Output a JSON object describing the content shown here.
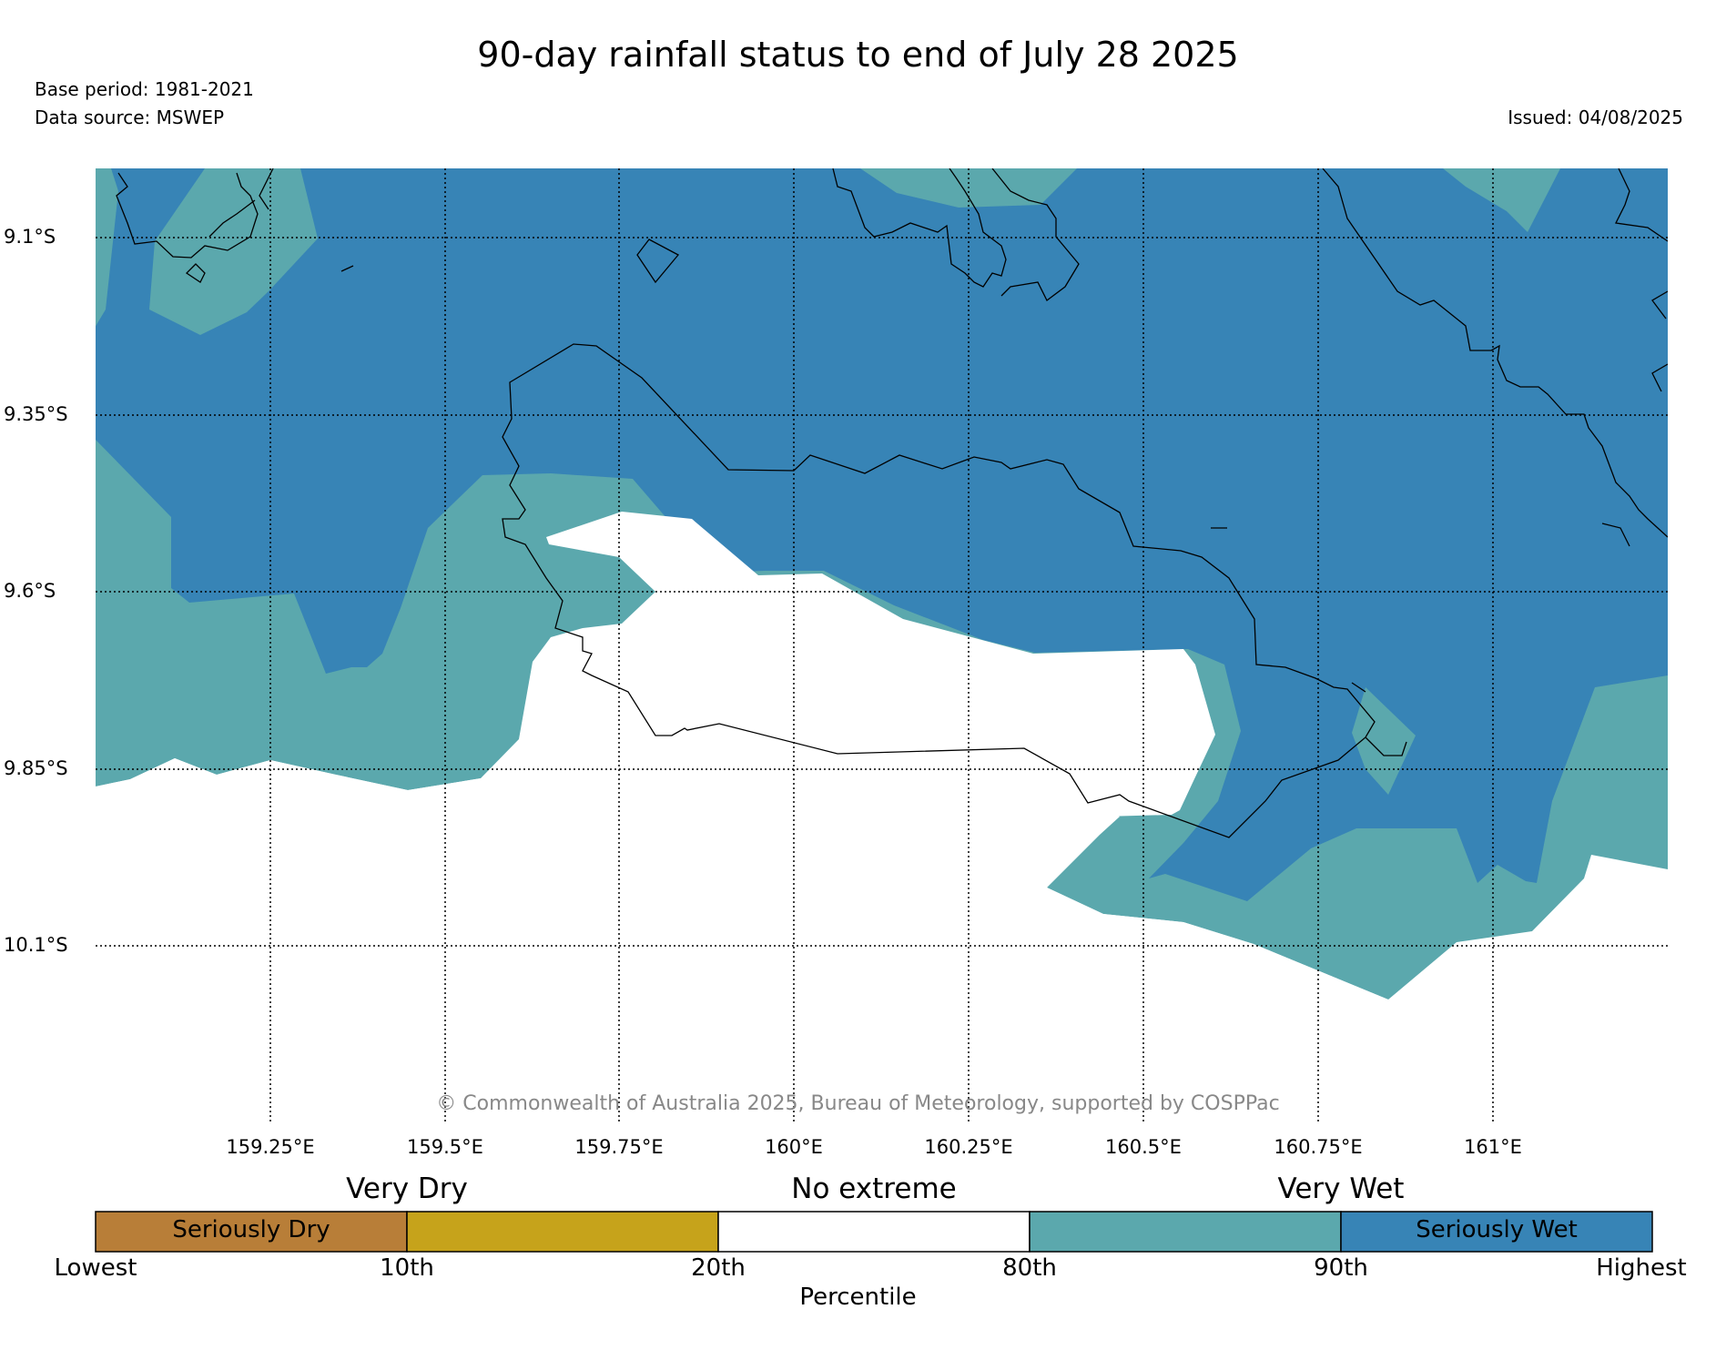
{
  "title": "90-day rainfall status to end of July 28 2025",
  "base_period": "Base period: 1981-2021",
  "data_source": "Data source: MSWEP",
  "issued": "Issued: 04/08/2025",
  "copyright": "© Commonwealth of Australia 2025, Bureau of Meteorology, supported by COSPPac",
  "lat_labels": [
    "9.1°S",
    "9.35°S",
    "9.6°S",
    "9.85°S",
    "10.1°S"
  ],
  "lon_labels": [
    "159.25°E",
    "159.5°E",
    "159.75°E",
    "160°E",
    "160.25°E",
    "160.5°E",
    "160.75°E",
    "161°E"
  ],
  "legend": {
    "categories": [
      "Very Dry",
      "No extreme",
      "Very Wet"
    ],
    "segments": [
      {
        "label": "Seriously Dry",
        "color": "#b87e38"
      },
      {
        "label": "",
        "color": "#c6a31b"
      },
      {
        "label": "",
        "color": "#ffffff"
      },
      {
        "label": "",
        "color": "#5ba8ad"
      },
      {
        "label": "Seriously Wet",
        "color": "#3784b6"
      }
    ],
    "ticks": [
      "Lowest",
      "10th",
      "20th",
      "80th",
      "90th",
      "Highest"
    ],
    "axis_label": "Percentile"
  },
  "colors": {
    "very_wet": "#5ba8ad",
    "seriously_wet": "#3784b6",
    "no_extreme": "#ffffff"
  }
}
